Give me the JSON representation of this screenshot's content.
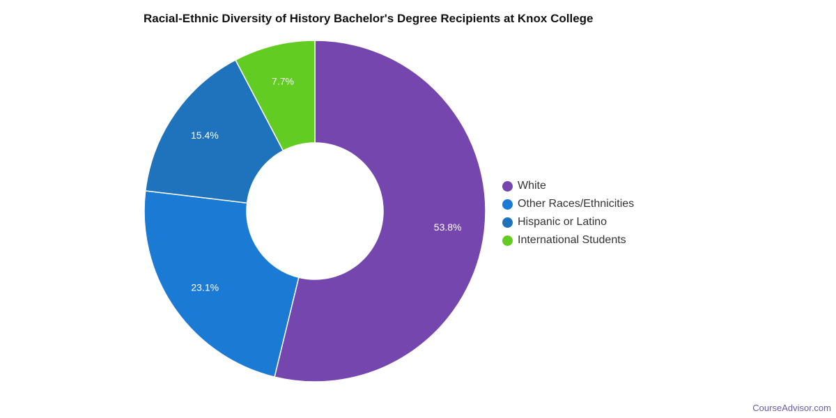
{
  "chart_data": {
    "type": "pie",
    "variant": "donut",
    "title": "Racial-Ethnic Diversity of History Bachelor's Degree Recipients at Knox College",
    "categories": [
      "White",
      "Other Races/Ethnicities",
      "Hispanic or Latino",
      "International Students"
    ],
    "values": [
      53.8,
      23.1,
      15.4,
      7.7
    ],
    "value_labels": [
      "53.8%",
      "23.1%",
      "15.4%",
      "7.7%"
    ],
    "colors": [
      "#7446ae",
      "#1a7ad4",
      "#1e73bc",
      "#62cc23"
    ],
    "legend_position": "right"
  },
  "credit": "CourseAdvisor.com"
}
